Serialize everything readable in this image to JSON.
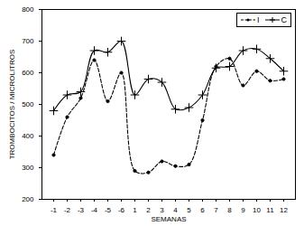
{
  "chart_data": {
    "type": "line",
    "x_label": "SEMANAS",
    "y_label": "TROMBOCITOS / MICROLITROS",
    "categories": [
      "-1",
      "-2",
      "-3",
      "-4",
      "-5",
      "-6",
      "1",
      "2",
      "3",
      "4",
      "5",
      "6",
      "7",
      "8",
      "9",
      "10",
      "11",
      "12"
    ],
    "series": [
      {
        "name": "I",
        "color": "#000000",
        "marker": "dot",
        "line_style": "dashed",
        "values": [
          340,
          460,
          520,
          640,
          510,
          600,
          290,
          285,
          320,
          305,
          310,
          450,
          620,
          645,
          560,
          605,
          575,
          580
        ]
      },
      {
        "name": "C",
        "color": "#000000",
        "marker": "plus",
        "line_style": "solid",
        "values": [
          480,
          530,
          540,
          670,
          665,
          700,
          530,
          580,
          570,
          485,
          490,
          530,
          615,
          620,
          670,
          675,
          645,
          605
        ]
      }
    ],
    "ylim": [
      200,
      800
    ],
    "yticks": [
      200,
      300,
      400,
      500,
      600,
      700,
      800
    ],
    "legend": "top-right"
  }
}
